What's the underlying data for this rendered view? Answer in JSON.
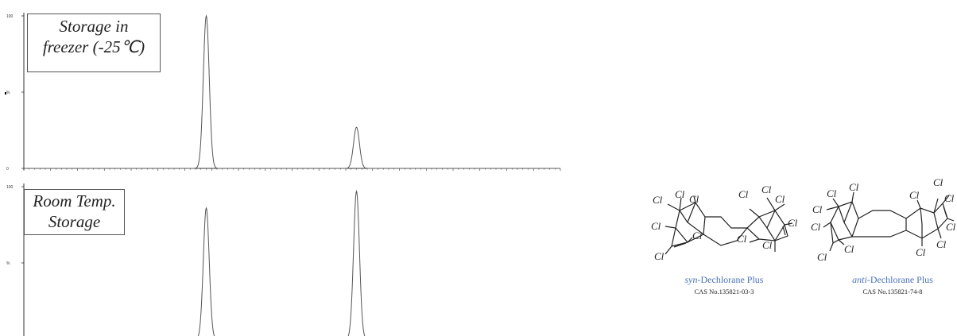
{
  "chart_data": [
    {
      "type": "line",
      "label_lines": [
        "Storage in",
        "freezer (-25℃)"
      ],
      "y_ticks": [
        "100",
        "%",
        "0"
      ],
      "ylim": [
        0,
        100
      ],
      "x": [
        0,
        100
      ],
      "series": [
        {
          "peaks": [
            {
              "rt": 34,
              "height": 100,
              "width": 0.55
            },
            {
              "rt": 62,
              "height": 27,
              "width": 0.55
            }
          ]
        }
      ]
    },
    {
      "type": "line",
      "label_lines": [
        "Room Temp.",
        "Storage"
      ],
      "y_ticks": [
        "100",
        "%"
      ],
      "ylim": [
        0,
        100
      ],
      "x": [
        0,
        100
      ],
      "series": [
        {
          "peaks": [
            {
              "rt": 34,
              "height": 86,
              "width": 0.55
            },
            {
              "rt": 62,
              "height": 97,
              "width": 0.55
            }
          ]
        }
      ]
    }
  ],
  "molecules": [
    {
      "name_prefix": "syn",
      "name_suffix": "-Dechlorane Plus",
      "cas": "CAS No.135821-03-3",
      "atom_label": "Cl"
    },
    {
      "name_prefix": "anti",
      "name_suffix": "-Dechlorane Plus",
      "cas": "CAS No.135821-74-8",
      "atom_label": "Cl"
    }
  ]
}
